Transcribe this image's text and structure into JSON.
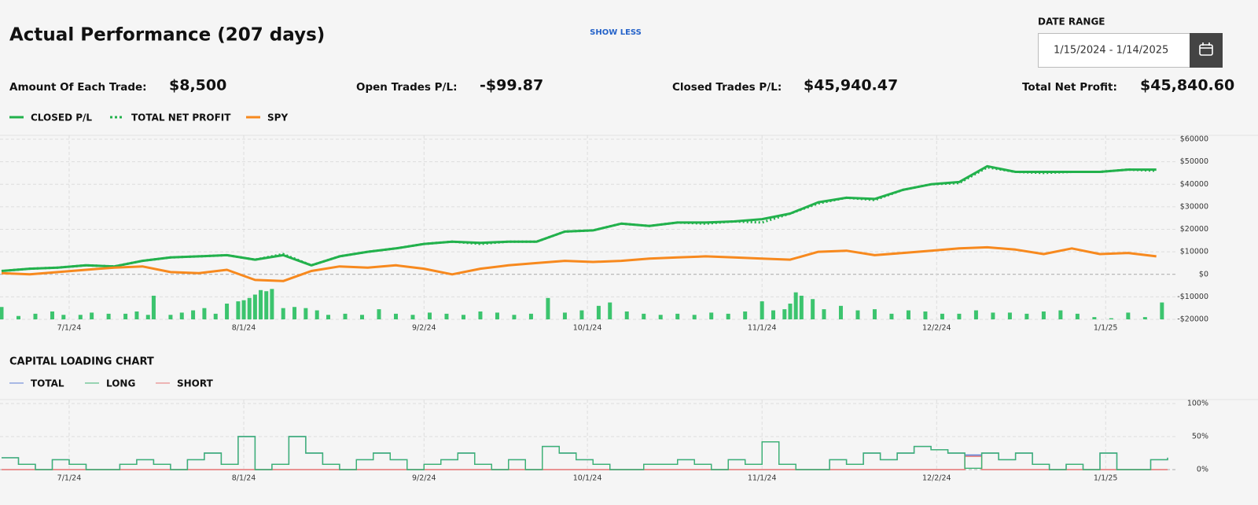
{
  "header": {
    "title": "Actual Performance (207 days)",
    "toggle": "SHOW LESS",
    "date_range_label": "DATE RANGE",
    "date_range": "1/15/2024 - 1/14/2025"
  },
  "stats": [
    {
      "label": "Amount Of Each Trade:",
      "value": "$8,500"
    },
    {
      "label": "Open Trades P/L:",
      "value": "-$99.87"
    },
    {
      "label": "Closed Trades P/L:",
      "value": "$45,940.47"
    },
    {
      "label": "Total Net Profit:",
      "value": "$45,840.60"
    }
  ],
  "chart_data": [
    {
      "type": "line",
      "xlim": [
        0,
        207
      ],
      "xticks": [
        {
          "value": 12,
          "label": "7/1/24"
        },
        {
          "value": 43,
          "label": "8/1/24"
        },
        {
          "value": 75,
          "label": "9/2/24"
        },
        {
          "value": 104,
          "label": "10/1/24"
        },
        {
          "value": 135,
          "label": "11/1/24"
        },
        {
          "value": 166,
          "label": "12/2/24"
        },
        {
          "value": 196,
          "label": "1/1/25"
        }
      ],
      "ylim": [
        -20000,
        60000
      ],
      "yticks": [
        {
          "value": -20000,
          "label": "-$20000"
        },
        {
          "value": -10000,
          "label": "-$10000"
        },
        {
          "value": 0,
          "label": "$0"
        },
        {
          "value": 10000,
          "label": "$10000"
        },
        {
          "value": 20000,
          "label": "$20000"
        },
        {
          "value": 30000,
          "label": "$30000"
        },
        {
          "value": 40000,
          "label": "$40000"
        },
        {
          "value": 50000,
          "label": "$50000"
        },
        {
          "value": 60000,
          "label": "$60000"
        }
      ],
      "grid": true,
      "x": [
        0,
        5,
        10,
        15,
        20,
        25,
        30,
        35,
        40,
        45,
        50,
        55,
        60,
        65,
        70,
        75,
        80,
        85,
        90,
        95,
        100,
        105,
        110,
        115,
        120,
        125,
        130,
        135,
        140,
        145,
        150,
        155,
        160,
        165,
        170,
        175,
        180,
        185,
        190,
        195,
        200,
        205
      ],
      "series": [
        {
          "name": "CLOSED P/L",
          "color": "#22b14c",
          "style": "solid",
          "values": [
            1500,
            2500,
            3000,
            4000,
            3500,
            6000,
            7500,
            8000,
            8500,
            6500,
            8500,
            4000,
            8000,
            10000,
            11500,
            13500,
            14500,
            14000,
            14500,
            14500,
            19000,
            19500,
            22500,
            21500,
            23000,
            23000,
            23500,
            24500,
            27000,
            32000,
            34000,
            33500,
            37500,
            40000,
            41000,
            48000,
            45500,
            45500,
            45500,
            45500,
            46500,
            46500
          ]
        },
        {
          "name": "TOTAL NET PROFIT",
          "color": "#22b14c",
          "style": "dotted",
          "values": [
            1500,
            2500,
            3000,
            4000,
            3500,
            6000,
            7500,
            8000,
            8500,
            6500,
            9000,
            4000,
            8000,
            10000,
            11500,
            13500,
            14500,
            13500,
            14500,
            14500,
            19000,
            19500,
            22500,
            21500,
            23000,
            22500,
            23500,
            23000,
            27000,
            31500,
            34000,
            33000,
            37500,
            40000,
            40500,
            47500,
            45500,
            45000,
            45500,
            45500,
            46500,
            46000
          ]
        },
        {
          "name": "SPY",
          "color": "#f7891e",
          "style": "solid",
          "values": [
            500,
            0,
            1000,
            2000,
            3000,
            3500,
            1000,
            500,
            2000,
            -2500,
            -3000,
            1500,
            3500,
            3000,
            4000,
            2500,
            0,
            2500,
            4000,
            5000,
            6000,
            5500,
            6000,
            7000,
            7500,
            8000,
            7500,
            7000,
            6500,
            10000,
            10500,
            8500,
            9500,
            10500,
            11500,
            12000,
            11000,
            9000,
            11500,
            9000,
            9500,
            8000
          ]
        }
      ],
      "bars": {
        "color": "#3cc46e",
        "x": [
          0,
          3,
          6,
          9,
          11,
          14,
          16,
          19,
          22,
          24,
          26,
          27,
          30,
          32,
          34,
          36,
          38,
          40,
          42,
          43,
          44,
          45,
          46,
          47,
          48,
          50,
          52,
          54,
          56,
          58,
          61,
          64,
          67,
          70,
          73,
          76,
          79,
          82,
          85,
          88,
          91,
          94,
          97,
          100,
          103,
          106,
          108,
          111,
          114,
          117,
          120,
          123,
          126,
          129,
          132,
          135,
          137,
          139,
          140,
          141,
          142,
          144,
          146,
          149,
          152,
          155,
          158,
          161,
          164,
          167,
          170,
          173,
          176,
          179,
          182,
          185,
          188,
          191,
          194,
          197,
          200,
          203,
          206
        ],
        "values": [
          -14500,
          -18500,
          -17500,
          -16500,
          -18000,
          -18000,
          -17000,
          -17500,
          -17500,
          -16500,
          -18000,
          -9500,
          -18000,
          -17000,
          -16000,
          -15000,
          -17500,
          -13000,
          -12000,
          -11500,
          -10500,
          -9000,
          -7000,
          -7500,
          -6500,
          -15000,
          -14500,
          -15000,
          -16000,
          -18000,
          -17500,
          -18000,
          -15500,
          -17500,
          -18000,
          -17000,
          -17500,
          -18000,
          -16500,
          -17000,
          -18000,
          -17500,
          -10500,
          -17000,
          -16000,
          -14000,
          -12500,
          -16500,
          -17500,
          -18000,
          -17500,
          -18000,
          -17000,
          -17500,
          -16500,
          -12000,
          -16000,
          -15500,
          -13000,
          -8000,
          -9500,
          -11000,
          -15500,
          -14000,
          -16000,
          -15500,
          -17500,
          -16000,
          -16500,
          -17500,
          -17500,
          -16000,
          -17000,
          -17000,
          -17500,
          -16500,
          -16000,
          -17500,
          -19000,
          -19500,
          -17000,
          -19000,
          -12500
        ]
      }
    },
    {
      "type": "step",
      "title": "CAPITAL LOADING CHART",
      "xlim": [
        0,
        207
      ],
      "xticks": [
        {
          "value": 12,
          "label": "7/1/24"
        },
        {
          "value": 43,
          "label": "8/1/24"
        },
        {
          "value": 75,
          "label": "9/2/24"
        },
        {
          "value": 104,
          "label": "10/1/24"
        },
        {
          "value": 135,
          "label": "11/1/24"
        },
        {
          "value": 166,
          "label": "12/2/24"
        },
        {
          "value": 196,
          "label": "1/1/25"
        }
      ],
      "ylim": [
        0,
        100
      ],
      "yticks": [
        {
          "value": 0,
          "label": "0%"
        },
        {
          "value": 50,
          "label": "50%"
        },
        {
          "value": 100,
          "label": "100%"
        }
      ],
      "grid": true,
      "x": [
        0,
        3,
        6,
        9,
        12,
        15,
        18,
        21,
        24,
        27,
        30,
        33,
        36,
        39,
        42,
        45,
        48,
        51,
        54,
        57,
        60,
        63,
        66,
        69,
        72,
        75,
        78,
        81,
        84,
        87,
        90,
        93,
        96,
        99,
        102,
        105,
        108,
        111,
        114,
        117,
        120,
        123,
        126,
        129,
        132,
        135,
        138,
        141,
        144,
        147,
        150,
        153,
        156,
        159,
        162,
        165,
        168,
        171,
        174,
        177,
        180,
        183,
        186,
        189,
        192,
        195,
        198,
        201,
        204,
        207
      ],
      "series": [
        {
          "name": "TOTAL",
          "color": "#5b7bd5",
          "values": [
            18,
            8,
            0,
            15,
            8,
            0,
            0,
            8,
            15,
            8,
            0,
            15,
            25,
            8,
            50,
            0,
            8,
            50,
            25,
            8,
            0,
            15,
            25,
            15,
            0,
            8,
            15,
            25,
            8,
            0,
            15,
            0,
            35,
            25,
            15,
            8,
            0,
            0,
            8,
            8,
            15,
            8,
            0,
            15,
            8,
            42,
            8,
            0,
            0,
            15,
            8,
            25,
            15,
            25,
            35,
            30,
            25,
            22,
            25,
            15,
            25,
            8,
            0,
            8,
            0,
            25,
            0,
            0,
            15,
            18
          ]
        },
        {
          "name": "LONG",
          "color": "#3cb371",
          "values": [
            18,
            8,
            0,
            15,
            8,
            0,
            0,
            8,
            15,
            8,
            0,
            15,
            25,
            8,
            50,
            0,
            8,
            50,
            25,
            8,
            0,
            15,
            25,
            15,
            0,
            8,
            15,
            25,
            8,
            0,
            15,
            0,
            35,
            25,
            15,
            8,
            0,
            0,
            8,
            8,
            15,
            8,
            0,
            15,
            8,
            42,
            8,
            0,
            0,
            15,
            8,
            25,
            15,
            25,
            35,
            30,
            25,
            2,
            25,
            15,
            25,
            8,
            0,
            8,
            0,
            25,
            0,
            0,
            15,
            18
          ]
        },
        {
          "name": "SHORT",
          "color": "#e57373",
          "values": [
            0,
            0,
            0,
            0,
            0,
            0,
            0,
            0,
            0,
            0,
            0,
            0,
            0,
            0,
            0,
            0,
            0,
            0,
            0,
            0,
            0,
            0,
            0,
            0,
            0,
            0,
            0,
            0,
            0,
            0,
            0,
            0,
            0,
            0,
            0,
            0,
            0,
            0,
            0,
            0,
            0,
            0,
            0,
            0,
            0,
            0,
            0,
            0,
            0,
            0,
            0,
            0,
            0,
            0,
            0,
            0,
            0,
            20,
            0,
            0,
            0,
            0,
            0,
            0,
            0,
            0,
            0,
            0,
            0,
            0
          ]
        }
      ]
    }
  ]
}
